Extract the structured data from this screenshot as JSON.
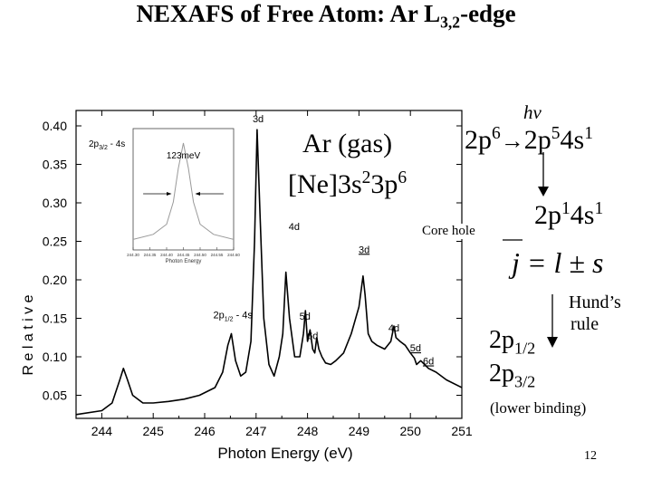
{
  "slide": {
    "title_main": "NEXAFS of Free Atom: Ar L",
    "title_sub": "3,2",
    "title_tail": "-edge",
    "page_number": "12"
  },
  "annotations": {
    "hv": "hν",
    "sample_line1": "Ar (gas)",
    "config_a": "[Ne]3s",
    "config_a_sup": "2",
    "config_b": "3p",
    "config_b_sup": "6",
    "trans_a": "2p",
    "trans_a_sup": "6",
    "arrow": "→",
    "trans_b": "2p",
    "trans_b_sup": "5",
    "trans_c": "4s",
    "trans_c_sup": "1",
    "final_a": "2p",
    "final_a_sup": "1",
    "final_b": "4s",
    "final_b_sup": "1",
    "core_hole": "Core hole",
    "jls": "j = l ± s",
    "hunds_line1": "Hund’s",
    "hunds_line2": "rule",
    "p12_main": "2p",
    "p12_sub": "1/2",
    "p32_main": "2p",
    "p32_sub": "3/2",
    "lower_binding": "(lower binding)"
  },
  "chart_data": {
    "type": "line",
    "xlabel": "Photon Energy (eV)",
    "ylabel": "R e l a t i v e",
    "xlim": [
      243.5,
      251
    ],
    "ylim": [
      0.02,
      0.42
    ],
    "xticks": [
      "244",
      "245",
      "246",
      "247",
      "248",
      "249",
      "250",
      "251"
    ],
    "yticks": [
      "0.05",
      "0.10",
      "0.15",
      "0.20",
      "0.25",
      "0.30",
      "0.35",
      "0.40"
    ],
    "series": [
      {
        "color": "#000000",
        "x": [
          243.5,
          244.0,
          244.2,
          244.35,
          244.42,
          244.5,
          244.6,
          244.8,
          245.0,
          245.3,
          245.6,
          245.9,
          246.2,
          246.35,
          246.45,
          246.52,
          246.6,
          246.7,
          246.8,
          246.9,
          246.97,
          247.02,
          247.08,
          247.15,
          247.25,
          247.35,
          247.45,
          247.52,
          247.58,
          247.65,
          247.75,
          247.85,
          247.92,
          247.96,
          248.0,
          248.05,
          248.1,
          248.14,
          248.18,
          248.22,
          248.28,
          248.35,
          248.45,
          248.55,
          248.7,
          248.85,
          249.0,
          249.08,
          249.12,
          249.18,
          249.25,
          249.35,
          249.5,
          249.62,
          249.68,
          249.72,
          249.8,
          249.9,
          250.0,
          250.08,
          250.12,
          250.2,
          250.35,
          250.5,
          250.7,
          251.0
        ],
        "y": [
          0.025,
          0.03,
          0.04,
          0.07,
          0.085,
          0.07,
          0.05,
          0.04,
          0.04,
          0.042,
          0.045,
          0.05,
          0.06,
          0.08,
          0.115,
          0.13,
          0.095,
          0.075,
          0.08,
          0.12,
          0.25,
          0.395,
          0.28,
          0.15,
          0.09,
          0.075,
          0.1,
          0.13,
          0.21,
          0.15,
          0.1,
          0.1,
          0.13,
          0.16,
          0.12,
          0.135,
          0.11,
          0.105,
          0.125,
          0.11,
          0.1,
          0.092,
          0.09,
          0.095,
          0.105,
          0.13,
          0.165,
          0.205,
          0.18,
          0.13,
          0.12,
          0.115,
          0.11,
          0.12,
          0.14,
          0.125,
          0.12,
          0.115,
          0.105,
          0.098,
          0.09,
          0.095,
          0.085,
          0.08,
          0.07,
          0.06
        ]
      }
    ],
    "peak_labels": [
      {
        "text": "3d",
        "x": 247.04,
        "y": 0.405
      },
      {
        "text": "4d",
        "x": 247.74,
        "y": 0.265
      },
      {
        "text": "3d",
        "x": 249.1,
        "y": 0.235,
        "underline": true
      },
      {
        "text": "2p",
        "sub": "1/2",
        "tail": " - 4s",
        "x": 246.55,
        "y": 0.15
      },
      {
        "text": "5d",
        "x": 247.95,
        "y": 0.148
      },
      {
        "text": "6d",
        "x": 248.1,
        "y": 0.123
      },
      {
        "text": "4d",
        "x": 249.68,
        "y": 0.133
      },
      {
        "text": "5d",
        "x": 250.1,
        "y": 0.107,
        "underline": true
      },
      {
        "text": "6d",
        "x": 250.35,
        "y": 0.09,
        "underline": true
      }
    ],
    "inset": {
      "label_a": "2p",
      "label_a_sub": "3/2",
      "label_a_tail": " - 4s",
      "width_label": "123meV",
      "xlabel": "Photon Energy",
      "xticks": [
        "244.30",
        "244.35",
        "244.40",
        "244.45",
        "244.50",
        "244.55",
        "244.60"
      ],
      "curve_x": [
        244.3,
        244.36,
        244.4,
        244.42,
        244.435,
        244.45,
        244.465,
        244.48,
        244.5,
        244.54,
        244.6
      ],
      "curve_y": [
        0.05,
        0.1,
        0.2,
        0.42,
        0.75,
        1.0,
        0.75,
        0.42,
        0.2,
        0.1,
        0.05
      ]
    }
  }
}
